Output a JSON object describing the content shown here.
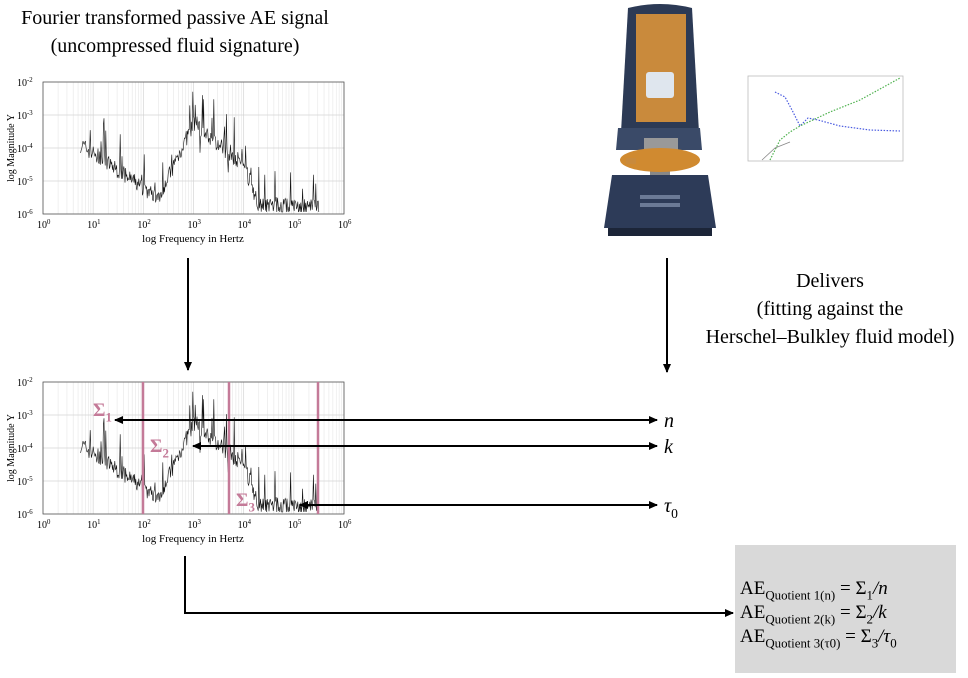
{
  "header": {
    "lines": [
      "Fourier transformed passive AE signal",
      "(uncompressed fluid signature)"
    ]
  },
  "plot": {
    "ylabel": "log Magnitude Y",
    "xlabel": "log Frequency in Hertz",
    "yticks": [
      {
        "base": "10",
        "exp": "-2"
      },
      {
        "base": "10",
        "exp": "-3"
      },
      {
        "base": "10",
        "exp": "-4"
      },
      {
        "base": "10",
        "exp": "-5"
      },
      {
        "base": "10",
        "exp": "-6"
      }
    ],
    "xticks": [
      {
        "base": "10",
        "exp": "0"
      },
      {
        "base": "10",
        "exp": "1"
      },
      {
        "base": "10",
        "exp": "2"
      },
      {
        "base": "10",
        "exp": "3"
      },
      {
        "base": "10",
        "exp": "4"
      },
      {
        "base": "10",
        "exp": "5"
      },
      {
        "base": "10",
        "exp": "6"
      }
    ]
  },
  "delivers": {
    "lines": [
      "Delivers",
      "(fitting against the",
      "Herschel–Bulkley fluid model)"
    ]
  },
  "sums": [
    {
      "symbol": "Σ",
      "sub": "1"
    },
    {
      "symbol": "Σ",
      "sub": "2"
    },
    {
      "symbol": "Σ",
      "sub": "3"
    }
  ],
  "params": [
    {
      "symbol": "n"
    },
    {
      "symbol": "k"
    },
    {
      "symbol": "τ",
      "sub": "0"
    }
  ],
  "formulas": [
    {
      "lhs": "AE",
      "lhs_sub": "Quotient 1(n)",
      "eq": " = Σ",
      "rhs_sub": "1",
      "rhs": "/n"
    },
    {
      "lhs": "AE",
      "lhs_sub": "Quotient 2(k)",
      "eq": " = Σ",
      "rhs_sub": "2",
      "rhs": "/k"
    },
    {
      "lhs": "AE",
      "lhs_sub": "Quotient 3(τ0)",
      "eq": " = Σ",
      "rhs_sub": "3",
      "rhs": "/τ",
      "rhs_sub2": "0"
    }
  ]
}
